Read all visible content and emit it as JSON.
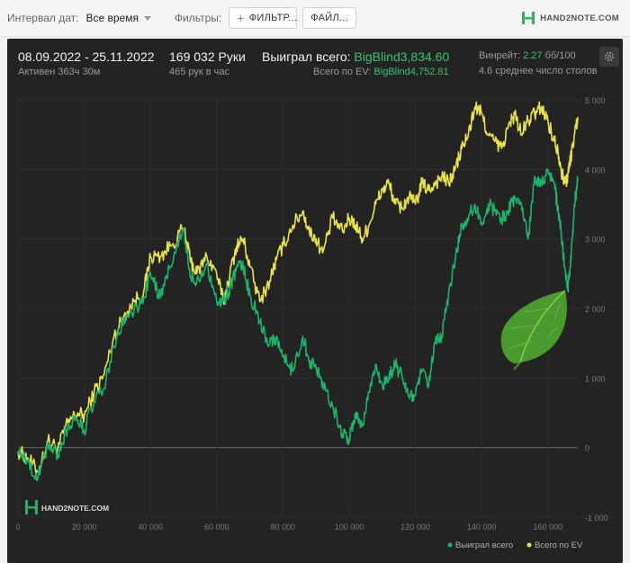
{
  "toolbar": {
    "date_interval_label": "Интервал дат:",
    "date_interval_value": "Все время",
    "filters_label": "Фильтры:",
    "filter_button": "ФИЛЬТР...",
    "file_button": "ФАЙЛ...",
    "brand": "HAND2NOTE.COM"
  },
  "stats": {
    "date_range": "08.09.2022 - 25.11.2022",
    "active": "Активен 363ч 30м",
    "hands": "169 032 Руки",
    "hands_per_hour": "465 рук в час",
    "won_label": "Выиграл всего: ",
    "won_value": "BigBlind3,834.60",
    "ev_label": "Всего по EV: ",
    "ev_value": "BigBlind4,752.81",
    "winrate_label": "Винрейт: ",
    "winrate_value": "2.27",
    "winrate_unit": " бб/100",
    "avg_tables": "4.6 среднее число столов"
  },
  "watermark": "HAND2NOTE.COM",
  "colors": {
    "panel_bg": "#232323",
    "won_line": "#1db36b",
    "ev_line": "#e8e24a",
    "accent_green": "#34c373"
  },
  "chart_data": {
    "type": "line",
    "x_ticks": [
      "0",
      "20 000",
      "40 000",
      "60 000",
      "80 000",
      "100 000",
      "120 000",
      "140 000",
      "160 000"
    ],
    "y_ticks": [
      "-1 000",
      "0",
      "1 000",
      "2 000",
      "3 000",
      "4 000",
      "5 000"
    ],
    "xlim": [
      0,
      169032
    ],
    "ylim": [
      -1000,
      5000
    ],
    "grid": true,
    "legend_position": "bottom-right",
    "series": [
      {
        "name": "Выиграл всего",
        "color": "#1db36b",
        "x": [
          0,
          3000,
          6000,
          9000,
          12000,
          15000,
          18000,
          20000,
          23000,
          26000,
          29000,
          32000,
          35000,
          38000,
          40000,
          43000,
          46000,
          50000,
          52000,
          54000,
          57000,
          60000,
          62000,
          64000,
          66000,
          68000,
          70000,
          73000,
          76000,
          78000,
          80000,
          83000,
          86000,
          88000,
          90000,
          92000,
          95000,
          98000,
          100000,
          102000,
          104000,
          106000,
          108000,
          110000,
          112000,
          114000,
          116000,
          118000,
          120000,
          122000,
          124000,
          126000,
          128000,
          130000,
          132000,
          134000,
          136000,
          138000,
          140000,
          142000,
          144000,
          146000,
          148000,
          150000,
          152000,
          154000,
          156000,
          158000,
          160000,
          162000,
          163000,
          164000,
          165000,
          166000,
          167000,
          168000,
          169032
        ],
        "y": [
          -50,
          -200,
          -450,
          50,
          -100,
          300,
          400,
          250,
          650,
          850,
          1450,
          1850,
          1950,
          2150,
          2500,
          2150,
          2600,
          3150,
          2450,
          2400,
          2650,
          2100,
          2100,
          2300,
          2600,
          2600,
          2200,
          1800,
          1500,
          1600,
          1300,
          1100,
          1600,
          1250,
          1150,
          950,
          600,
          200,
          100,
          500,
          300,
          800,
          1200,
          900,
          1000,
          1200,
          1000,
          750,
          750,
          1100,
          900,
          1500,
          1600,
          2200,
          2700,
          3200,
          3300,
          3500,
          3200,
          3500,
          3400,
          3300,
          3400,
          3600,
          3500,
          3000,
          3900,
          3800,
          4000,
          3800,
          3400,
          3100,
          2600,
          2300,
          2700,
          3500,
          3834.6
        ]
      },
      {
        "name": "Всего по EV",
        "color": "#e8e24a",
        "x": [
          0,
          3000,
          6000,
          9000,
          12000,
          15000,
          18000,
          20000,
          23000,
          26000,
          29000,
          32000,
          35000,
          38000,
          40000,
          43000,
          46000,
          50000,
          52000,
          54000,
          57000,
          60000,
          62000,
          64000,
          66000,
          68000,
          70000,
          73000,
          76000,
          78000,
          80000,
          83000,
          86000,
          88000,
          90000,
          92000,
          95000,
          98000,
          100000,
          102000,
          104000,
          106000,
          108000,
          110000,
          112000,
          114000,
          116000,
          118000,
          120000,
          122000,
          124000,
          126000,
          128000,
          130000,
          132000,
          134000,
          136000,
          138000,
          140000,
          142000,
          144000,
          146000,
          148000,
          150000,
          152000,
          154000,
          156000,
          158000,
          160000,
          162000,
          163000,
          164000,
          165000,
          166000,
          167000,
          168000,
          169032
        ],
        "y": [
          -50,
          -150,
          -350,
          100,
          0,
          350,
          500,
          450,
          800,
          1050,
          1600,
          1900,
          2100,
          2250,
          2750,
          2750,
          2900,
          3150,
          2700,
          2500,
          2750,
          2500,
          2100,
          2500,
          2900,
          3000,
          2600,
          2100,
          2400,
          2700,
          2900,
          3200,
          3400,
          3100,
          3000,
          2800,
          3300,
          3100,
          3300,
          3200,
          3000,
          3200,
          3500,
          3700,
          3800,
          3500,
          3450,
          3600,
          3500,
          3800,
          3700,
          3800,
          3900,
          3800,
          4000,
          4300,
          4500,
          4900,
          4800,
          4500,
          4400,
          4300,
          4600,
          4800,
          4500,
          4700,
          4800,
          4900,
          4700,
          4400,
          4300,
          4000,
          3800,
          3900,
          4200,
          4500,
          4752.81
        ]
      }
    ]
  }
}
